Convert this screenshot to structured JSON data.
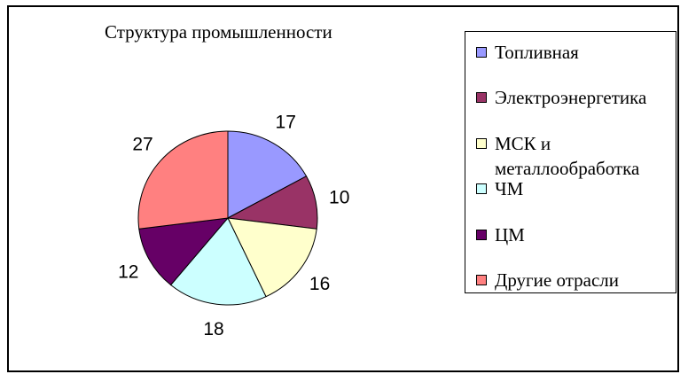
{
  "chart_data": {
    "type": "pie",
    "title": "Структура промышленности",
    "categories": [
      "Топливная",
      "Электроэнергетика",
      "МСК и металлообработка",
      "ЧМ",
      "ЦМ",
      "Другие отрасли"
    ],
    "values": [
      17,
      10,
      16,
      18,
      12,
      27
    ],
    "colors": [
      "#9999ff",
      "#993366",
      "#ffffcc",
      "#ccffff",
      "#660066",
      "#ff8080"
    ],
    "data_labels": [
      "17",
      "10",
      "16",
      "18",
      "12",
      "27"
    ],
    "legend_position": "right",
    "start_angle": "12 o'clock",
    "direction": "clockwise"
  }
}
